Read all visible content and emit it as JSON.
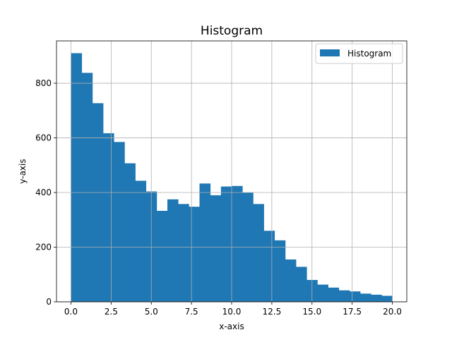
{
  "chart_data": {
    "type": "bar",
    "title": "Histogram",
    "xlabel": "x-axis",
    "ylabel": "y-axis",
    "xlim": [
      -0.9,
      20.9
    ],
    "ylim": [
      0,
      955
    ],
    "grid": true,
    "legend": {
      "position": "top-right",
      "entries": [
        "Histogram"
      ]
    },
    "bar_color": "#1f77b4",
    "bin_width": 0.6667,
    "bin_starts": [
      0.0,
      0.6667,
      1.3333,
      2.0,
      2.6667,
      3.3333,
      4.0,
      4.6667,
      5.3333,
      6.0,
      6.6667,
      7.3333,
      8.0,
      8.6667,
      9.3333,
      10.0,
      10.6667,
      11.3333,
      12.0,
      12.6667,
      13.3333,
      14.0,
      14.6667,
      15.3333,
      16.0,
      16.6667,
      17.3333,
      18.0,
      18.6667,
      19.3333
    ],
    "values": [
      910,
      838,
      727,
      617,
      585,
      507,
      443,
      404,
      333,
      375,
      358,
      348,
      433,
      390,
      422,
      424,
      400,
      358,
      260,
      225,
      155,
      128,
      80,
      63,
      52,
      42,
      38,
      30,
      26,
      22
    ],
    "x_ticks": [
      0,
      2.5,
      5,
      7.5,
      10,
      12.5,
      15,
      17.5,
      20
    ],
    "x_tick_labels": [
      "0.0",
      "2.5",
      "5.0",
      "7.5",
      "10.0",
      "12.5",
      "15.0",
      "17.5",
      "20.0"
    ],
    "y_ticks": [
      0,
      200,
      400,
      600,
      800
    ],
    "y_tick_labels": [
      "0",
      "200",
      "400",
      "600",
      "800"
    ]
  }
}
